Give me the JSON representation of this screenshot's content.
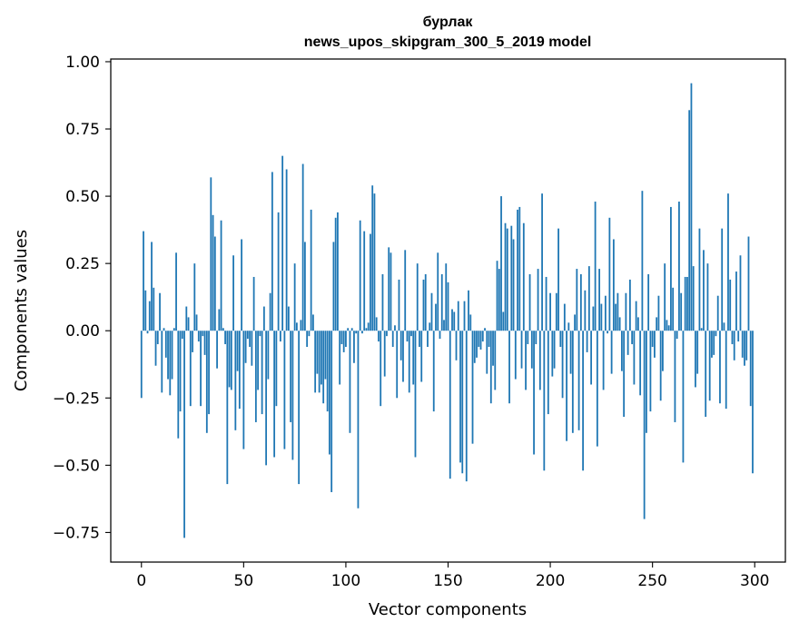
{
  "chart_data": {
    "type": "bar",
    "title": "бурлак",
    "subtitle": "news_upos_skipgram_300_5_2019 model",
    "xlabel": "Vector components",
    "ylabel": "Components values",
    "xlim": [
      -15,
      315
    ],
    "ylim": [
      -0.86,
      1.01
    ],
    "xticks": [
      0,
      50,
      100,
      150,
      200,
      250,
      300
    ],
    "yticks": [
      -0.75,
      -0.5,
      -0.25,
      0.0,
      0.25,
      0.5,
      0.75,
      1.0
    ],
    "xtick_labels": [
      "0",
      "50",
      "100",
      "150",
      "200",
      "250",
      "300"
    ],
    "ytick_labels": [
      "−0.75",
      "−0.50",
      "−0.25",
      "0.00",
      "0.25",
      "0.50",
      "0.75",
      "1.00"
    ],
    "grid": false,
    "bar_color": "#1f77b4",
    "values": [
      -0.25,
      0.37,
      0.15,
      -0.01,
      0.11,
      0.33,
      0.16,
      -0.13,
      -0.05,
      0.14,
      -0.23,
      0.01,
      -0.1,
      -0.18,
      -0.24,
      -0.18,
      0.01,
      0.29,
      -0.4,
      -0.3,
      -0.03,
      -0.77,
      0.09,
      0.05,
      -0.28,
      -0.08,
      0.25,
      0.06,
      -0.04,
      -0.28,
      -0.02,
      -0.09,
      -0.38,
      -0.31,
      0.57,
      0.43,
      0.35,
      -0.14,
      0.08,
      0.41,
      0.01,
      -0.05,
      -0.57,
      -0.21,
      -0.22,
      0.28,
      -0.37,
      -0.15,
      -0.29,
      0.34,
      -0.44,
      -0.12,
      -0.03,
      -0.06,
      -0.13,
      0.2,
      -0.34,
      -0.22,
      -0.02,
      -0.31,
      0.09,
      -0.5,
      -0.18,
      0.14,
      0.59,
      -0.47,
      -0.28,
      0.44,
      -0.04,
      0.65,
      -0.44,
      0.6,
      0.09,
      -0.34,
      -0.48,
      0.25,
      0.03,
      -0.57,
      0.04,
      0.62,
      0.33,
      -0.06,
      -0.02,
      0.45,
      0.06,
      -0.23,
      -0.16,
      -0.23,
      -0.2,
      -0.27,
      -0.18,
      -0.3,
      -0.46,
      -0.6,
      0.33,
      0.42,
      0.44,
      -0.2,
      -0.05,
      -0.08,
      -0.06,
      0.01,
      -0.38,
      0.01,
      -0.12,
      -0.01,
      -0.66,
      0.41,
      -0.01,
      0.37,
      0.01,
      0.03,
      0.36,
      0.54,
      0.51,
      0.05,
      -0.04,
      -0.28,
      0.21,
      -0.17,
      -0.02,
      0.31,
      0.29,
      -0.06,
      0.02,
      -0.25,
      0.19,
      -0.11,
      -0.19,
      0.3,
      -0.04,
      -0.23,
      -0.02,
      -0.2,
      -0.47,
      0.25,
      -0.06,
      -0.19,
      0.19,
      0.21,
      -0.06,
      0.03,
      0.14,
      -0.3,
      0.1,
      0.29,
      -0.03,
      0.21,
      0.04,
      0.25,
      0.18,
      -0.55,
      0.08,
      0.07,
      -0.11,
      0.11,
      -0.49,
      -0.53,
      0.11,
      -0.56,
      0.15,
      0.06,
      -0.42,
      -0.12,
      -0.1,
      -0.06,
      -0.07,
      -0.04,
      0.01,
      -0.16,
      -0.06,
      -0.27,
      -0.13,
      -0.22,
      0.26,
      0.23,
      0.5,
      0.07,
      0.4,
      0.38,
      -0.27,
      0.39,
      0.34,
      -0.18,
      0.45,
      0.46,
      -0.14,
      0.4,
      -0.22,
      -0.05,
      0.21,
      -0.14,
      -0.46,
      -0.05,
      0.23,
      -0.22,
      0.51,
      -0.52,
      0.2,
      -0.31,
      0.14,
      -0.17,
      -0.14,
      0.14,
      0.38,
      -0.06,
      -0.25,
      0.1,
      -0.41,
      0.03,
      -0.16,
      -0.38,
      0.06,
      0.23,
      -0.37,
      0.21,
      -0.52,
      0.15,
      -0.08,
      0.24,
      -0.2,
      0.09,
      0.48,
      -0.43,
      0.23,
      0.1,
      -0.22,
      0.13,
      -0.01,
      0.42,
      -0.16,
      0.34,
      0.1,
      0.14,
      0.05,
      -0.15,
      -0.32,
      0.14,
      -0.09,
      0.19,
      -0.05,
      -0.2,
      0.11,
      0.05,
      -0.24,
      0.52,
      -0.7,
      -0.38,
      0.21,
      -0.3,
      -0.06,
      -0.1,
      0.05,
      0.13,
      -0.26,
      -0.15,
      0.25,
      0.04,
      0.02,
      0.46,
      0.16,
      -0.34,
      -0.03,
      0.48,
      0.14,
      -0.49,
      0.2,
      0.2,
      0.82,
      0.92,
      0.24,
      -0.21,
      -0.16,
      0.38,
      0.01,
      0.3,
      -0.32,
      0.25,
      -0.26,
      -0.1,
      -0.09,
      -0.02,
      0.13,
      -0.27,
      0.38,
      0.03,
      -0.29,
      0.51,
      0.19,
      -0.05,
      -0.11,
      0.22,
      -0.04,
      0.28,
      -0.1,
      -0.13,
      -0.11,
      0.35,
      -0.28,
      -0.53
    ]
  }
}
